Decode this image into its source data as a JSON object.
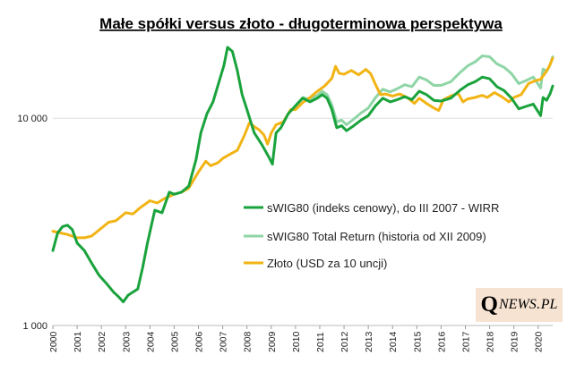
{
  "chart_data": {
    "type": "line",
    "title": "Małe spółki versus złoto - długoterminowa perspektywa",
    "xlabel": "",
    "ylabel": "",
    "yscale": "log",
    "ylim": [
      1000,
      25000
    ],
    "xlim": [
      2000,
      2020.6
    ],
    "yticks": [
      {
        "value": 1000,
        "label": "1 000"
      },
      {
        "value": 10000,
        "label": "10 000"
      }
    ],
    "xticks": [
      "2000",
      "2001",
      "2002",
      "2003",
      "2004",
      "2005",
      "2006",
      "2007",
      "2008",
      "2009",
      "2010",
      "2011",
      "2012",
      "2013",
      "2014",
      "2015",
      "2016",
      "2017",
      "2018",
      "2019",
      "2020"
    ],
    "legend_position": "center-right",
    "series": [
      {
        "name": "sWIG80 (indeks cenowy), do III 2007 - WIRR",
        "color": "#1aa33c",
        "x": [
          2000,
          2000.2,
          2000.4,
          2000.6,
          2000.8,
          2001,
          2001.3,
          2001.6,
          2001.9,
          2002.2,
          2002.5,
          2002.7,
          2002.9,
          2003.1,
          2003.3,
          2003.5,
          2003.7,
          2003.9,
          2004.2,
          2004.5,
          2004.8,
          2005.0,
          2005.3,
          2005.6,
          2005.9,
          2006.1,
          2006.35,
          2006.6,
          2006.85,
          2007.05,
          2007.2,
          2007.4,
          2007.6,
          2007.8,
          2008.0,
          2008.3,
          2008.6,
          2008.9,
          2009.05,
          2009.2,
          2009.4,
          2009.7,
          2010.0,
          2010.3,
          2010.6,
          2010.9,
          2011.1,
          2011.3,
          2011.5,
          2011.7,
          2011.9,
          2012.1,
          2012.4,
          2012.7,
          2013.0,
          2013.3,
          2013.6,
          2013.9,
          2014.2,
          2014.5,
          2014.8,
          2015.1,
          2015.4,
          2015.7,
          2016.0,
          2016.4,
          2016.8,
          2017.1,
          2017.4,
          2017.7,
          2018.0,
          2018.3,
          2018.6,
          2018.9,
          2019.2,
          2019.5,
          2019.8,
          2020.1,
          2020.2,
          2020.35,
          2020.5,
          2020.6
        ],
        "values": [
          2300,
          2800,
          3000,
          3050,
          2900,
          2500,
          2300,
          2000,
          1750,
          1600,
          1450,
          1380,
          1300,
          1400,
          1450,
          1500,
          1900,
          2500,
          3600,
          3500,
          4400,
          4300,
          4400,
          4700,
          6300,
          8500,
          10500,
          12000,
          15000,
          18000,
          22000,
          21000,
          17000,
          13000,
          11000,
          8500,
          7500,
          6500,
          6000,
          8500,
          9000,
          10500,
          11500,
          12500,
          12000,
          12500,
          13000,
          12500,
          11000,
          9000,
          9200,
          8700,
          9200,
          9800,
          10300,
          11500,
          12500,
          12000,
          12300,
          12700,
          12300,
          13500,
          13000,
          12200,
          12100,
          12500,
          13700,
          14500,
          15000,
          15800,
          15500,
          14200,
          13600,
          12500,
          11100,
          11400,
          11700,
          10300,
          12600,
          12200,
          13200,
          14300
        ]
      },
      {
        "name": "sWIG80 Total Return (historia od XII 2009)",
        "color": "#8fd5a6",
        "x": [
          2010.0,
          2010.3,
          2010.6,
          2010.9,
          2011.1,
          2011.3,
          2011.5,
          2011.7,
          2011.9,
          2012.1,
          2012.4,
          2012.7,
          2013.0,
          2013.3,
          2013.6,
          2013.9,
          2014.2,
          2014.5,
          2014.8,
          2015.1,
          2015.4,
          2015.7,
          2016.0,
          2016.4,
          2016.8,
          2017.1,
          2017.4,
          2017.7,
          2018.0,
          2018.3,
          2018.6,
          2018.9,
          2019.2,
          2019.5,
          2019.8,
          2020.1,
          2020.2,
          2020.35,
          2020.5,
          2020.6
        ],
        "values": [
          11500,
          12600,
          12300,
          12900,
          13500,
          13000,
          11600,
          9600,
          9800,
          9300,
          9900,
          10600,
          11200,
          12600,
          13800,
          13400,
          13900,
          14500,
          14200,
          15800,
          15300,
          14400,
          14400,
          15000,
          16700,
          17900,
          18700,
          20000,
          19800,
          18300,
          17600,
          16400,
          14700,
          15200,
          15800,
          14000,
          17300,
          16800,
          18200,
          19800
        ]
      },
      {
        "name": "Złoto (USD za 10 uncji)",
        "color": "#f2b414",
        "x": [
          2000,
          2000.3,
          2000.6,
          2001.0,
          2001.3,
          2001.6,
          2002.0,
          2002.3,
          2002.6,
          2003.0,
          2003.3,
          2003.6,
          2004.0,
          2004.3,
          2004.6,
          2005.0,
          2005.3,
          2005.6,
          2006.0,
          2006.3,
          2006.5,
          2006.8,
          2007.0,
          2007.3,
          2007.6,
          2007.9,
          2008.1,
          2008.3,
          2008.5,
          2008.7,
          2008.85,
          2009.0,
          2009.2,
          2009.5,
          2009.8,
          2010.0,
          2010.3,
          2010.6,
          2010.9,
          2011.2,
          2011.5,
          2011.65,
          2011.8,
          2012.0,
          2012.3,
          2012.6,
          2012.9,
          2013.1,
          2013.3,
          2013.5,
          2013.7,
          2014.0,
          2014.3,
          2014.6,
          2014.9,
          2015.1,
          2015.4,
          2015.7,
          2015.9,
          2016.1,
          2016.4,
          2016.7,
          2016.9,
          2017.1,
          2017.4,
          2017.7,
          2017.9,
          2018.2,
          2018.5,
          2018.8,
          2019.0,
          2019.3,
          2019.6,
          2019.9,
          2020.1,
          2020.3,
          2020.45,
          2020.6
        ],
        "values": [
          2850,
          2800,
          2750,
          2650,
          2650,
          2700,
          2950,
          3150,
          3200,
          3500,
          3450,
          3700,
          4000,
          3900,
          4100,
          4300,
          4400,
          4600,
          5500,
          6200,
          5900,
          6100,
          6400,
          6700,
          7000,
          8300,
          9500,
          9100,
          8800,
          8300,
          7500,
          8500,
          9300,
          9600,
          11000,
          11000,
          11900,
          12600,
          13500,
          14300,
          15600,
          17800,
          16500,
          16300,
          17000,
          16200,
          17200,
          16400,
          14500,
          13000,
          13100,
          12800,
          13100,
          12600,
          11800,
          12500,
          11800,
          11200,
          10900,
          12300,
          12800,
          13200,
          12000,
          12400,
          12600,
          12900,
          12600,
          13300,
          12700,
          12000,
          12600,
          13000,
          14700,
          15200,
          15400,
          16600,
          17700,
          19500
        ]
      }
    ]
  },
  "brand": {
    "q": "Q",
    "rest": "NEWS",
    "dot": ".",
    "pl": "PL"
  }
}
